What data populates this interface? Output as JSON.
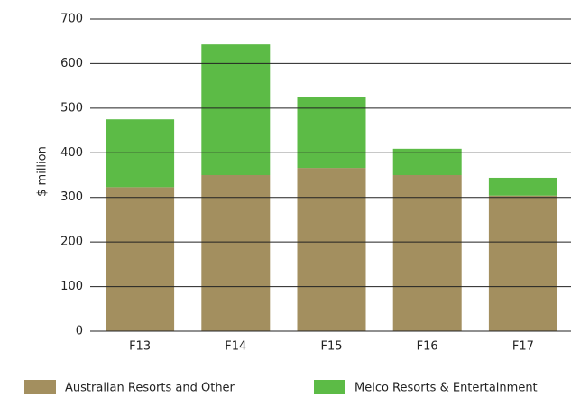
{
  "chart_data": {
    "type": "stacked_bar",
    "y_label": "$ million",
    "categories": [
      "F13",
      "F14",
      "F15",
      "F16",
      "F17"
    ],
    "series": [
      {
        "name": "Australian Resorts and Other",
        "color": "#a38f5f",
        "values": [
          323,
          350,
          366,
          350,
          304
        ]
      },
      {
        "name": "Melco Resorts & Entertainment",
        "color": "#5cbb46",
        "values": [
          152,
          293,
          160,
          59,
          40
        ]
      }
    ],
    "ylim": [
      0,
      700
    ],
    "yticks": [
      0,
      100,
      200,
      300,
      400,
      500,
      600,
      700
    ],
    "grid": true,
    "legend": "bottom"
  }
}
